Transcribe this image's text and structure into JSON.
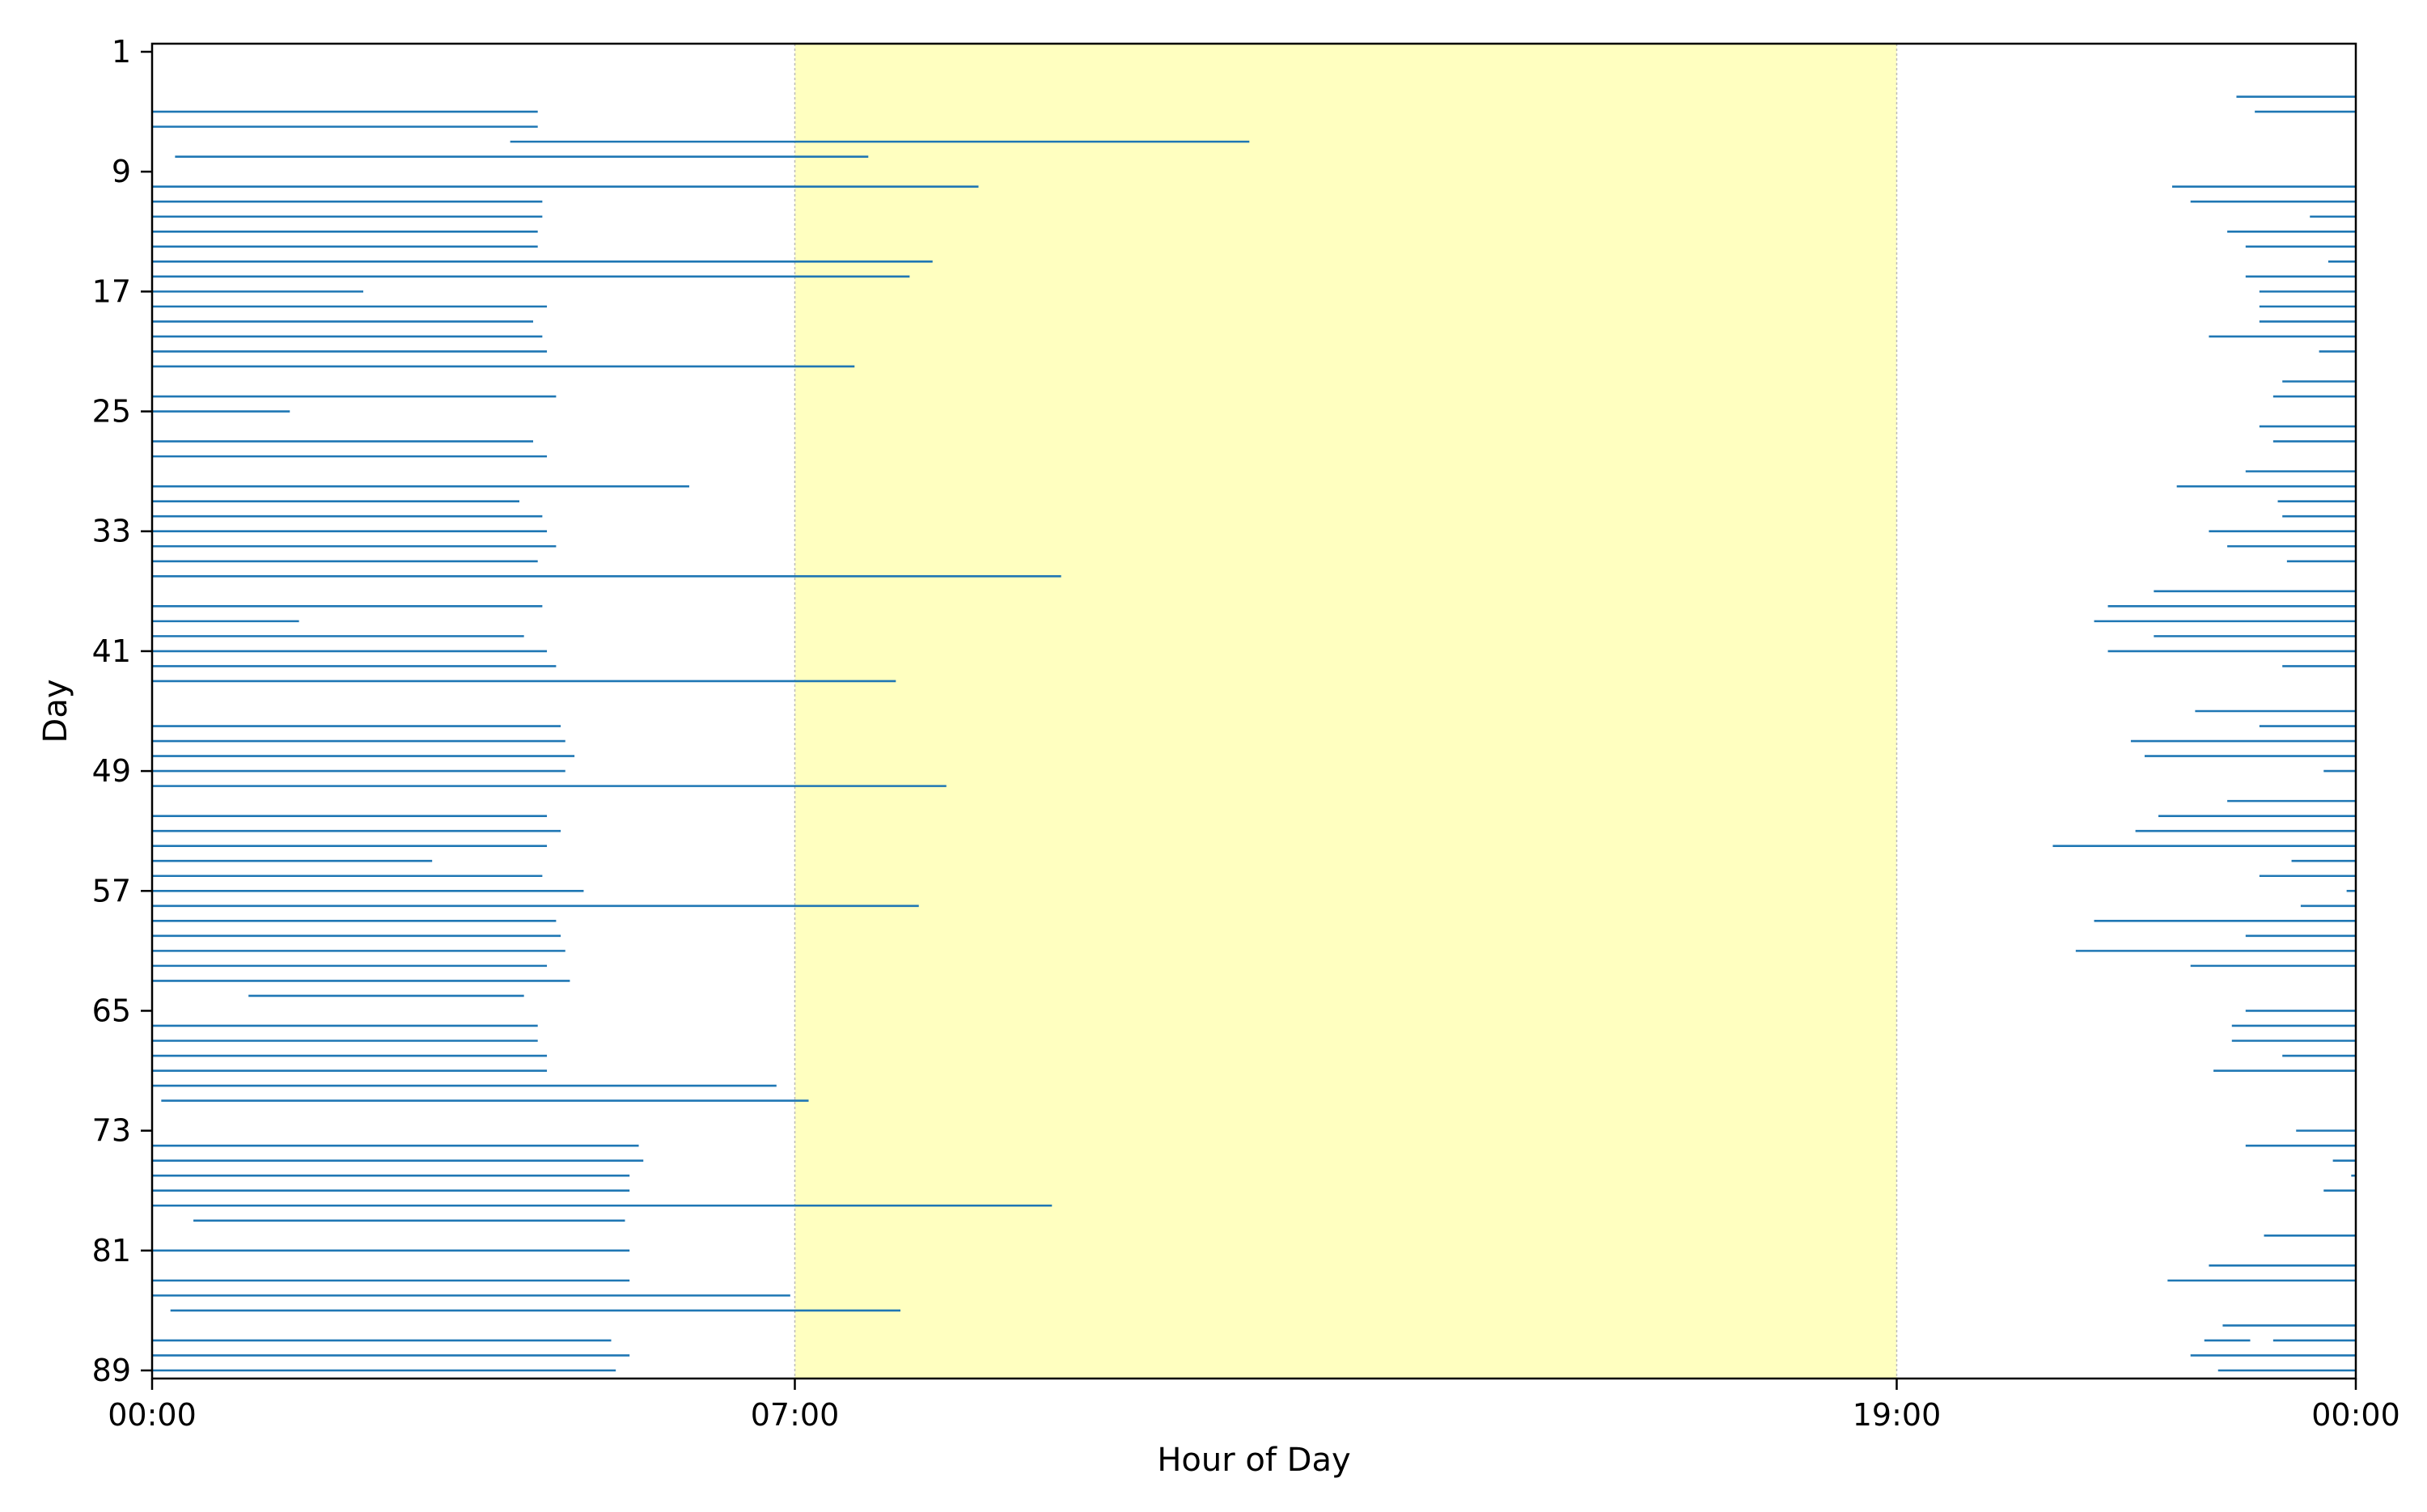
{
  "chart_data": {
    "type": "bar",
    "orientation": "horizontal-range",
    "title": "",
    "xlabel": "Hour of Day",
    "ylabel": "Day",
    "xlim": [
      0,
      24
    ],
    "ylim": [
      1,
      89
    ],
    "y_inverted": true,
    "x_ticks": [
      {
        "value": 0,
        "label": "00:00"
      },
      {
        "value": 7,
        "label": "07:00"
      },
      {
        "value": 19,
        "label": "19:00"
      },
      {
        "value": 24,
        "label": "00:00"
      }
    ],
    "y_ticks": [
      1,
      9,
      17,
      25,
      33,
      41,
      49,
      57,
      65,
      73,
      81,
      89
    ],
    "grid": false,
    "highlight": {
      "from": 7,
      "to": 19,
      "color": "#ffffc0",
      "edge_color": "#bbbbbb"
    },
    "bar_color": "#1f77b4",
    "series": [
      {
        "values": [
          {
            "day": 4,
            "segments": [
              [
                22.7,
                24
              ]
            ]
          },
          {
            "day": 5,
            "segments": [
              [
                0,
                4.2
              ],
              [
                22.9,
                24
              ]
            ]
          },
          {
            "day": 6,
            "segments": [
              [
                0,
                4.2
              ]
            ]
          },
          {
            "day": 7,
            "segments": [
              [
                3.9,
                11.95
              ]
            ]
          },
          {
            "day": 8,
            "segments": [
              [
                0.25,
                7.8
              ]
            ]
          },
          {
            "day": 10,
            "segments": [
              [
                0,
                9.0
              ],
              [
                22.0,
                24
              ]
            ]
          },
          {
            "day": 11,
            "segments": [
              [
                0,
                4.25
              ],
              [
                22.2,
                24
              ]
            ]
          },
          {
            "day": 12,
            "segments": [
              [
                0,
                4.25
              ],
              [
                23.5,
                24
              ]
            ]
          },
          {
            "day": 13,
            "segments": [
              [
                0,
                4.2
              ],
              [
                22.6,
                24
              ]
            ]
          },
          {
            "day": 14,
            "segments": [
              [
                0,
                4.2
              ],
              [
                22.8,
                24
              ]
            ]
          },
          {
            "day": 15,
            "segments": [
              [
                0,
                8.5
              ],
              [
                23.7,
                24
              ]
            ]
          },
          {
            "day": 16,
            "segments": [
              [
                0,
                8.25
              ],
              [
                22.8,
                24
              ]
            ]
          },
          {
            "day": 17,
            "segments": [
              [
                0,
                2.3
              ],
              [
                22.95,
                24
              ]
            ]
          },
          {
            "day": 18,
            "segments": [
              [
                0,
                4.3
              ],
              [
                22.95,
                24
              ]
            ]
          },
          {
            "day": 19,
            "segments": [
              [
                0,
                4.15
              ],
              [
                22.95,
                24
              ]
            ]
          },
          {
            "day": 20,
            "segments": [
              [
                0,
                4.25
              ],
              [
                22.4,
                24
              ]
            ]
          },
          {
            "day": 21,
            "segments": [
              [
                0,
                4.3
              ],
              [
                23.6,
                24
              ]
            ]
          },
          {
            "day": 22,
            "segments": [
              [
                0,
                7.65
              ]
            ]
          },
          {
            "day": 23,
            "segments": [
              [
                23.2,
                24
              ]
            ]
          },
          {
            "day": 24,
            "segments": [
              [
                0,
                4.4
              ],
              [
                23.1,
                24
              ]
            ]
          },
          {
            "day": 25,
            "segments": [
              [
                0,
                1.5
              ]
            ]
          },
          {
            "day": 26,
            "segments": [
              [
                22.95,
                24
              ]
            ]
          },
          {
            "day": 27,
            "segments": [
              [
                0,
                4.15
              ],
              [
                23.1,
                24
              ]
            ]
          },
          {
            "day": 28,
            "segments": [
              [
                0,
                4.3
              ]
            ]
          },
          {
            "day": 29,
            "segments": [
              [
                22.8,
                24
              ]
            ]
          },
          {
            "day": 30,
            "segments": [
              [
                0,
                5.85
              ],
              [
                22.05,
                24
              ]
            ]
          },
          {
            "day": 31,
            "segments": [
              [
                0,
                4.0
              ],
              [
                23.15,
                24
              ]
            ]
          },
          {
            "day": 32,
            "segments": [
              [
                0,
                4.25
              ],
              [
                23.2,
                24
              ]
            ]
          },
          {
            "day": 33,
            "segments": [
              [
                0,
                4.3
              ],
              [
                22.4,
                24
              ]
            ]
          },
          {
            "day": 34,
            "segments": [
              [
                0,
                4.4
              ],
              [
                22.6,
                24
              ]
            ]
          },
          {
            "day": 35,
            "segments": [
              [
                0,
                4.2
              ],
              [
                23.25,
                24
              ]
            ]
          },
          {
            "day": 36,
            "segments": [
              [
                0,
                9.9
              ]
            ]
          },
          {
            "day": 37,
            "segments": [
              [
                21.8,
                24
              ]
            ]
          },
          {
            "day": 38,
            "segments": [
              [
                0,
                4.25
              ],
              [
                21.3,
                24
              ]
            ]
          },
          {
            "day": 39,
            "segments": [
              [
                0,
                1.6
              ],
              [
                21.15,
                24
              ]
            ]
          },
          {
            "day": 40,
            "segments": [
              [
                0,
                4.05
              ],
              [
                21.8,
                24
              ]
            ]
          },
          {
            "day": 41,
            "segments": [
              [
                0,
                4.3
              ],
              [
                21.3,
                24
              ]
            ]
          },
          {
            "day": 42,
            "segments": [
              [
                0,
                4.4
              ],
              [
                23.2,
                24
              ]
            ]
          },
          {
            "day": 43,
            "segments": [
              [
                0,
                8.1
              ]
            ]
          },
          {
            "day": 45,
            "segments": [
              [
                22.25,
                24
              ]
            ]
          },
          {
            "day": 46,
            "segments": [
              [
                0,
                4.45
              ],
              [
                22.95,
                24
              ]
            ]
          },
          {
            "day": 47,
            "segments": [
              [
                0,
                4.5
              ],
              [
                21.55,
                24
              ]
            ]
          },
          {
            "day": 48,
            "segments": [
              [
                0,
                4.6
              ],
              [
                21.7,
                24
              ]
            ]
          },
          {
            "day": 49,
            "segments": [
              [
                0,
                4.5
              ],
              [
                23.65,
                24
              ]
            ]
          },
          {
            "day": 50,
            "segments": [
              [
                0,
                8.65
              ]
            ]
          },
          {
            "day": 51,
            "segments": [
              [
                22.6,
                24
              ]
            ]
          },
          {
            "day": 52,
            "segments": [
              [
                0,
                4.3
              ],
              [
                21.85,
                24
              ]
            ]
          },
          {
            "day": 53,
            "segments": [
              [
                0,
                4.45
              ],
              [
                21.6,
                24
              ]
            ]
          },
          {
            "day": 54,
            "segments": [
              [
                0,
                4.3
              ],
              [
                20.7,
                24
              ]
            ]
          },
          {
            "day": 55,
            "segments": [
              [
                0,
                3.05
              ],
              [
                23.3,
                24
              ]
            ]
          },
          {
            "day": 56,
            "segments": [
              [
                0,
                4.25
              ],
              [
                22.95,
                24
              ]
            ]
          },
          {
            "day": 57,
            "segments": [
              [
                0,
                4.7
              ],
              [
                23.9,
                24
              ]
            ]
          },
          {
            "day": 58,
            "segments": [
              [
                0,
                8.35
              ],
              [
                23.4,
                24
              ]
            ]
          },
          {
            "day": 59,
            "segments": [
              [
                0,
                4.4
              ],
              [
                21.15,
                24
              ]
            ]
          },
          {
            "day": 60,
            "segments": [
              [
                0,
                4.45
              ],
              [
                22.8,
                24
              ]
            ]
          },
          {
            "day": 61,
            "segments": [
              [
                0,
                4.5
              ],
              [
                20.95,
                24
              ]
            ]
          },
          {
            "day": 62,
            "segments": [
              [
                0,
                4.3
              ],
              [
                22.2,
                24
              ]
            ]
          },
          {
            "day": 63,
            "segments": [
              [
                0,
                4.55
              ]
            ]
          },
          {
            "day": 64,
            "segments": [
              [
                1.05,
                4.05
              ]
            ]
          },
          {
            "day": 65,
            "segments": [
              [
                22.8,
                24
              ]
            ]
          },
          {
            "day": 66,
            "segments": [
              [
                0,
                4.2
              ],
              [
                22.65,
                24
              ]
            ]
          },
          {
            "day": 67,
            "segments": [
              [
                0,
                4.2
              ],
              [
                22.65,
                24
              ]
            ]
          },
          {
            "day": 68,
            "segments": [
              [
                0,
                4.3
              ],
              [
                23.2,
                24
              ]
            ]
          },
          {
            "day": 69,
            "segments": [
              [
                0,
                4.3
              ],
              [
                22.45,
                24
              ]
            ]
          },
          {
            "day": 70,
            "segments": [
              [
                0,
                6.8
              ]
            ]
          },
          {
            "day": 71,
            "segments": [
              [
                0.1,
                7.15
              ]
            ]
          },
          {
            "day": 73,
            "segments": [
              [
                23.35,
                24
              ]
            ]
          },
          {
            "day": 74,
            "segments": [
              [
                0,
                5.3
              ],
              [
                22.8,
                24
              ]
            ]
          },
          {
            "day": 75,
            "segments": [
              [
                0,
                5.35
              ],
              [
                23.75,
                24
              ]
            ]
          },
          {
            "day": 76,
            "segments": [
              [
                0,
                5.2
              ],
              [
                23.95,
                24
              ]
            ]
          },
          {
            "day": 77,
            "segments": [
              [
                0,
                5.2
              ],
              [
                23.65,
                24
              ]
            ]
          },
          {
            "day": 78,
            "segments": [
              [
                0,
                9.8
              ]
            ]
          },
          {
            "day": 79,
            "segments": [
              [
                0.45,
                5.15
              ]
            ]
          },
          {
            "day": 80,
            "segments": [
              [
                23.0,
                24
              ]
            ]
          },
          {
            "day": 81,
            "segments": [
              [
                0,
                5.2
              ]
            ]
          },
          {
            "day": 82,
            "segments": [
              [
                22.4,
                24
              ]
            ]
          },
          {
            "day": 83,
            "segments": [
              [
                0,
                5.2
              ],
              [
                21.95,
                24
              ]
            ]
          },
          {
            "day": 84,
            "segments": [
              [
                0,
                6.95
              ]
            ]
          },
          {
            "day": 85,
            "segments": [
              [
                0.2,
                8.15
              ]
            ]
          },
          {
            "day": 86,
            "segments": [
              [
                22.55,
                24
              ]
            ]
          },
          {
            "day": 87,
            "segments": [
              [
                0,
                5.0
              ],
              [
                22.35,
                22.85
              ],
              [
                23.1,
                24
              ]
            ]
          },
          {
            "day": 88,
            "segments": [
              [
                0,
                5.2
              ],
              [
                22.2,
                24
              ]
            ]
          },
          {
            "day": 89,
            "segments": [
              [
                0,
                5.05
              ],
              [
                22.5,
                24
              ]
            ]
          }
        ]
      }
    ]
  }
}
